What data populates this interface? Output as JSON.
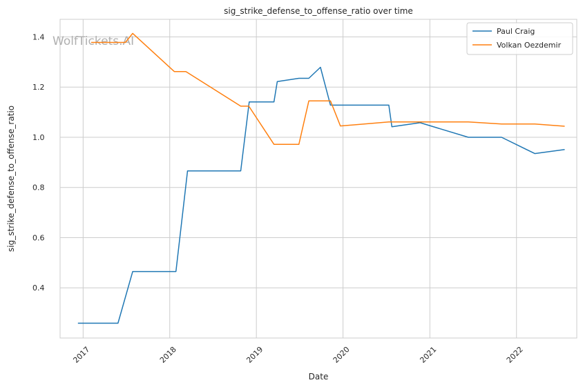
{
  "chart_data": {
    "type": "line",
    "title": "sig_strike_defense_to_offense_ratio over time",
    "xlabel": "Date",
    "ylabel": "sig_strike_defense_to_offense_ratio",
    "x_ticks": [
      "2017",
      "2018",
      "2019",
      "2020",
      "2021",
      "2022"
    ],
    "y_ticks": [
      "0.4",
      "0.6",
      "0.8",
      "1.0",
      "1.2",
      "1.4"
    ],
    "xlim": [
      "2016-09-26",
      "2022-09-12"
    ],
    "ylim": [
      0.2,
      1.47
    ],
    "grid": true,
    "legend_position": "top-right",
    "watermark": "WolfTickets.AI",
    "series": [
      {
        "name": "Paul Craig",
        "color": "#1f77b4",
        "points": [
          {
            "x": "2016-12-10",
            "y": 0.259
          },
          {
            "x": "2017-05-28",
            "y": 0.259
          },
          {
            "x": "2017-07-29",
            "y": 0.465
          },
          {
            "x": "2018-01-27",
            "y": 0.465
          },
          {
            "x": "2018-03-17",
            "y": 0.866
          },
          {
            "x": "2018-10-27",
            "y": 0.866
          },
          {
            "x": "2018-12-02",
            "y": 1.141
          },
          {
            "x": "2019-03-16",
            "y": 1.141
          },
          {
            "x": "2019-03-30",
            "y": 1.222
          },
          {
            "x": "2019-06-29",
            "y": 1.235
          },
          {
            "x": "2019-08-10",
            "y": 1.235
          },
          {
            "x": "2019-09-28",
            "y": 1.279
          },
          {
            "x": "2019-11-09",
            "y": 1.128
          },
          {
            "x": "2020-07-12",
            "y": 1.128
          },
          {
            "x": "2020-07-25",
            "y": 1.042
          },
          {
            "x": "2020-11-21",
            "y": 1.058
          },
          {
            "x": "2021-06-12",
            "y": 1.0
          },
          {
            "x": "2021-10-30",
            "y": 1.0
          },
          {
            "x": "2022-03-19",
            "y": 0.935
          },
          {
            "x": "2022-07-23",
            "y": 0.951
          }
        ]
      },
      {
        "name": "Volkan Oezdemir",
        "color": "#ff7f0e",
        "points": [
          {
            "x": "2017-02-04",
            "y": 1.378
          },
          {
            "x": "2017-06-28",
            "y": 1.378
          },
          {
            "x": "2017-07-29",
            "y": 1.414
          },
          {
            "x": "2018-01-20",
            "y": 1.262
          },
          {
            "x": "2018-03-10",
            "y": 1.262
          },
          {
            "x": "2018-10-27",
            "y": 1.124
          },
          {
            "x": "2018-11-30",
            "y": 1.124
          },
          {
            "x": "2019-03-16",
            "y": 0.972
          },
          {
            "x": "2019-06-29",
            "y": 0.972
          },
          {
            "x": "2019-08-10",
            "y": 1.145
          },
          {
            "x": "2019-11-09",
            "y": 1.145
          },
          {
            "x": "2019-12-21",
            "y": 1.045
          },
          {
            "x": "2020-07-12",
            "y": 1.061
          },
          {
            "x": "2021-06-12",
            "y": 1.061
          },
          {
            "x": "2021-10-30",
            "y": 1.053
          },
          {
            "x": "2022-03-19",
            "y": 1.053
          },
          {
            "x": "2022-07-23",
            "y": 1.044
          }
        ]
      }
    ]
  }
}
